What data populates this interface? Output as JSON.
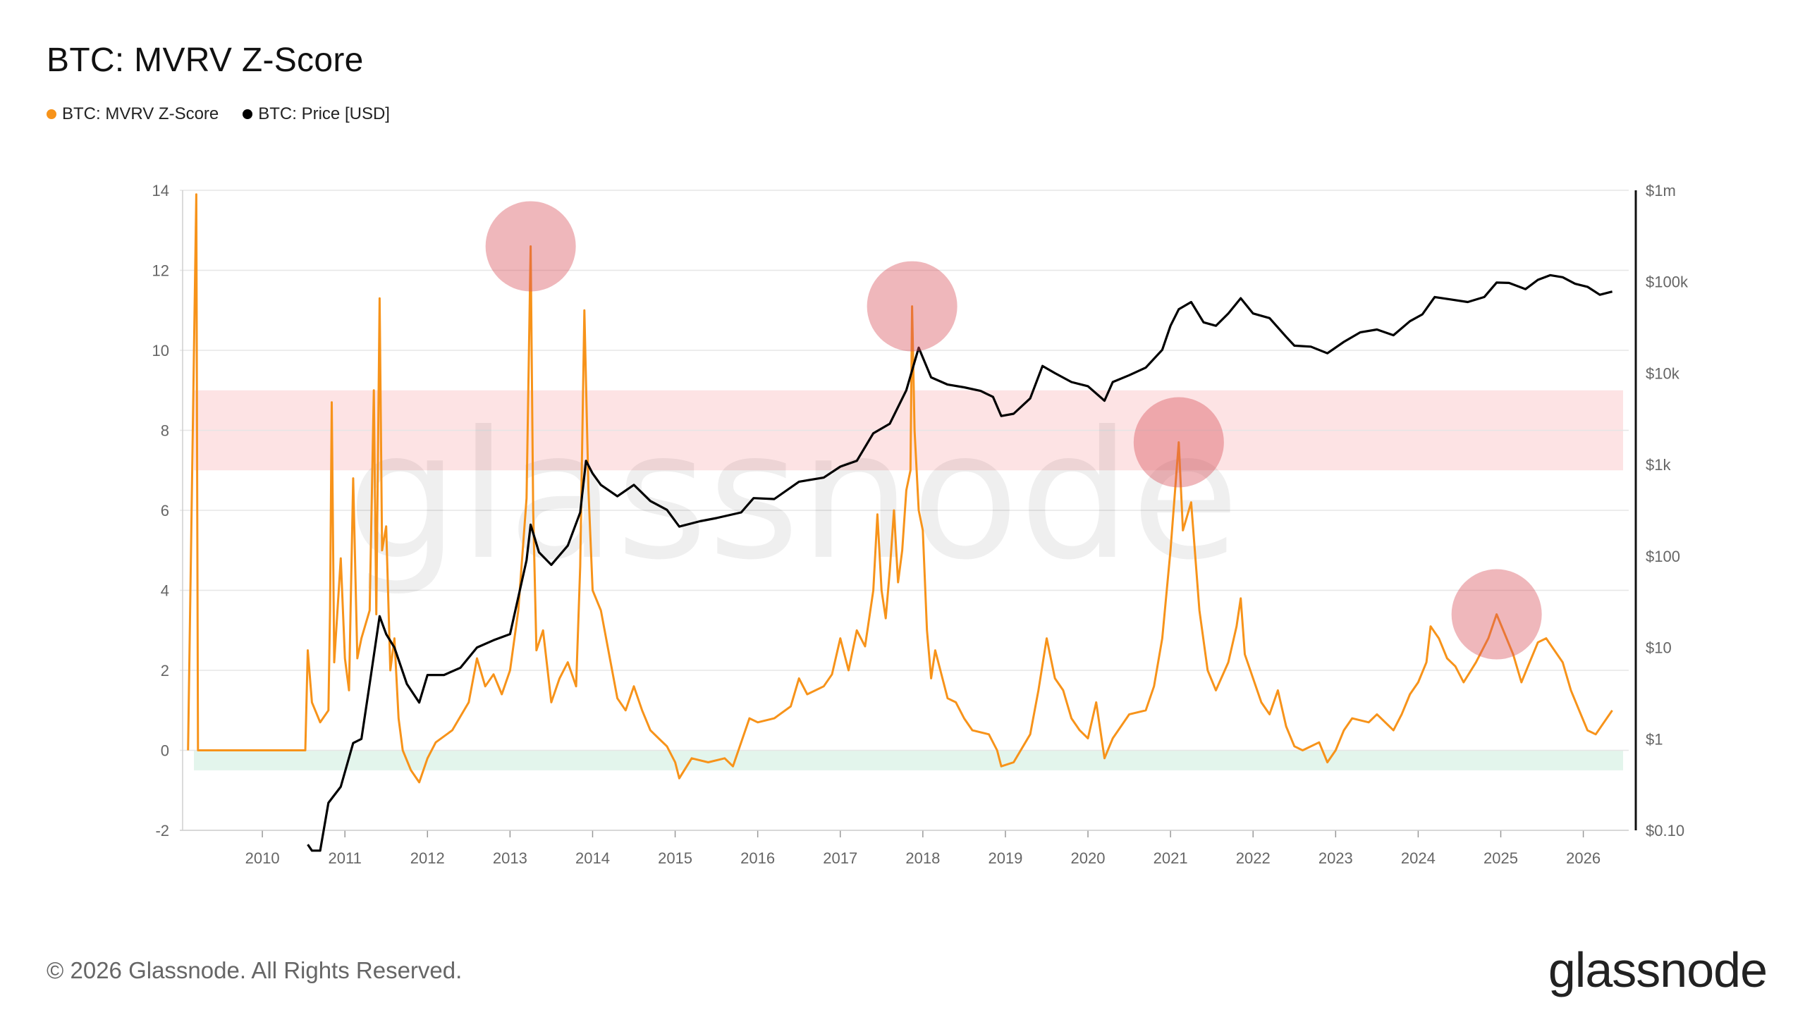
{
  "title": "BTC: MVRV Z-Score",
  "footer": "© 2026 Glassnode. All Rights Reserved.",
  "brand": "glassnode",
  "watermark": "glassnode",
  "legend": [
    {
      "label": "BTC: MVRV Z-Score",
      "color": "#f7931a"
    },
    {
      "label": "BTC: Price [USD]",
      "color": "#000000"
    }
  ],
  "chart_data": {
    "type": "line",
    "grid": true,
    "x_axis": {
      "ticks": [
        "2010",
        "2011",
        "2012",
        "2013",
        "2014",
        "2015",
        "2016",
        "2017",
        "2018",
        "2019",
        "2020",
        "2021",
        "2022",
        "2023",
        "2024",
        "2025",
        "2026"
      ]
    },
    "y_left": {
      "ticks": [
        "-2",
        "0",
        "2",
        "4",
        "6",
        "8",
        "10",
        "12",
        "14"
      ],
      "range": [
        -2,
        14
      ]
    },
    "y_right": {
      "ticks": [
        "$0.10",
        "$1",
        "$10",
        "$100",
        "$1k",
        "$10k",
        "$100k",
        "$1m"
      ],
      "scale": "log",
      "range": [
        0.1,
        1000000
      ]
    },
    "bands": [
      {
        "name": "overvalued-zone",
        "y_from": 7,
        "y_to": 9,
        "color": "#fde3e4"
      },
      {
        "name": "undervalued-zone",
        "y_from": -0.5,
        "y_to": 0,
        "color": "#e3f5ec"
      }
    ],
    "peak_markers": [
      {
        "year": 2013.25,
        "z": 12.6
      },
      {
        "year": 2017.87,
        "z": 11.1
      },
      {
        "year": 2021.1,
        "z": 7.7
      },
      {
        "year": 2024.95,
        "z": 3.4
      }
    ],
    "series": [
      {
        "name": "BTC: MVRV Z-Score",
        "color": "#f7931a",
        "axis": "left",
        "points": [
          [
            2009.1,
            0
          ],
          [
            2009.2,
            13.9
          ],
          [
            2009.22,
            0
          ],
          [
            2010.52,
            0
          ],
          [
            2010.55,
            2.5
          ],
          [
            2010.6,
            1.2
          ],
          [
            2010.7,
            0.7
          ],
          [
            2010.8,
            1.0
          ],
          [
            2010.82,
            3.5
          ],
          [
            2010.84,
            8.7
          ],
          [
            2010.87,
            2.2
          ],
          [
            2010.95,
            4.8
          ],
          [
            2011.0,
            2.3
          ],
          [
            2011.05,
            1.5
          ],
          [
            2011.1,
            6.8
          ],
          [
            2011.15,
            2.3
          ],
          [
            2011.2,
            2.8
          ],
          [
            2011.3,
            3.5
          ],
          [
            2011.35,
            9.0
          ],
          [
            2011.38,
            3.4
          ],
          [
            2011.42,
            11.3
          ],
          [
            2011.45,
            5.0
          ],
          [
            2011.5,
            5.6
          ],
          [
            2011.55,
            2.0
          ],
          [
            2011.6,
            2.8
          ],
          [
            2011.65,
            0.8
          ],
          [
            2011.7,
            0
          ],
          [
            2011.8,
            -0.5
          ],
          [
            2011.9,
            -0.8
          ],
          [
            2012.0,
            -0.2
          ],
          [
            2012.1,
            0.2
          ],
          [
            2012.3,
            0.5
          ],
          [
            2012.5,
            1.2
          ],
          [
            2012.6,
            2.3
          ],
          [
            2012.7,
            1.6
          ],
          [
            2012.8,
            1.9
          ],
          [
            2012.9,
            1.4
          ],
          [
            2013.0,
            2.0
          ],
          [
            2013.1,
            3.5
          ],
          [
            2013.2,
            6.3
          ],
          [
            2013.25,
            12.6
          ],
          [
            2013.28,
            6.0
          ],
          [
            2013.32,
            2.5
          ],
          [
            2013.4,
            3.0
          ],
          [
            2013.5,
            1.2
          ],
          [
            2013.6,
            1.8
          ],
          [
            2013.7,
            2.2
          ],
          [
            2013.8,
            1.6
          ],
          [
            2013.85,
            4.6
          ],
          [
            2013.9,
            11.0
          ],
          [
            2013.95,
            6.5
          ],
          [
            2014.0,
            4.0
          ],
          [
            2014.1,
            3.5
          ],
          [
            2014.2,
            2.4
          ],
          [
            2014.3,
            1.3
          ],
          [
            2014.4,
            1.0
          ],
          [
            2014.5,
            1.6
          ],
          [
            2014.6,
            1.0
          ],
          [
            2014.7,
            0.5
          ],
          [
            2014.8,
            0.3
          ],
          [
            2014.9,
            0.1
          ],
          [
            2015.0,
            -0.3
          ],
          [
            2015.05,
            -0.7
          ],
          [
            2015.2,
            -0.2
          ],
          [
            2015.4,
            -0.3
          ],
          [
            2015.6,
            -0.2
          ],
          [
            2015.7,
            -0.4
          ],
          [
            2015.8,
            0.2
          ],
          [
            2015.9,
            0.8
          ],
          [
            2016.0,
            0.7
          ],
          [
            2016.2,
            0.8
          ],
          [
            2016.4,
            1.1
          ],
          [
            2016.5,
            1.8
          ],
          [
            2016.6,
            1.4
          ],
          [
            2016.8,
            1.6
          ],
          [
            2016.9,
            1.9
          ],
          [
            2017.0,
            2.8
          ],
          [
            2017.1,
            2.0
          ],
          [
            2017.2,
            3.0
          ],
          [
            2017.3,
            2.6
          ],
          [
            2017.4,
            4.0
          ],
          [
            2017.45,
            5.9
          ],
          [
            2017.5,
            4.0
          ],
          [
            2017.55,
            3.3
          ],
          [
            2017.6,
            4.5
          ],
          [
            2017.65,
            6.0
          ],
          [
            2017.7,
            4.2
          ],
          [
            2017.75,
            5.0
          ],
          [
            2017.8,
            6.5
          ],
          [
            2017.85,
            7.0
          ],
          [
            2017.87,
            11.1
          ],
          [
            2017.9,
            8.0
          ],
          [
            2017.95,
            6.0
          ],
          [
            2018.0,
            5.5
          ],
          [
            2018.05,
            3.0
          ],
          [
            2018.1,
            1.8
          ],
          [
            2018.15,
            2.5
          ],
          [
            2018.3,
            1.3
          ],
          [
            2018.4,
            1.2
          ],
          [
            2018.5,
            0.8
          ],
          [
            2018.6,
            0.5
          ],
          [
            2018.8,
            0.4
          ],
          [
            2018.9,
            0
          ],
          [
            2018.95,
            -0.4
          ],
          [
            2019.1,
            -0.3
          ],
          [
            2019.3,
            0.4
          ],
          [
            2019.4,
            1.5
          ],
          [
            2019.5,
            2.8
          ],
          [
            2019.6,
            1.8
          ],
          [
            2019.7,
            1.5
          ],
          [
            2019.8,
            0.8
          ],
          [
            2019.9,
            0.5
          ],
          [
            2020.0,
            0.3
          ],
          [
            2020.1,
            1.2
          ],
          [
            2020.2,
            -0.2
          ],
          [
            2020.3,
            0.3
          ],
          [
            2020.5,
            0.9
          ],
          [
            2020.7,
            1.0
          ],
          [
            2020.8,
            1.6
          ],
          [
            2020.9,
            2.8
          ],
          [
            2021.0,
            5.0
          ],
          [
            2021.1,
            7.7
          ],
          [
            2021.15,
            5.5
          ],
          [
            2021.25,
            6.2
          ],
          [
            2021.35,
            3.5
          ],
          [
            2021.45,
            2.0
          ],
          [
            2021.55,
            1.5
          ],
          [
            2021.7,
            2.2
          ],
          [
            2021.8,
            3.1
          ],
          [
            2021.85,
            3.8
          ],
          [
            2021.9,
            2.4
          ],
          [
            2022.0,
            1.8
          ],
          [
            2022.1,
            1.2
          ],
          [
            2022.2,
            0.9
          ],
          [
            2022.3,
            1.5
          ],
          [
            2022.4,
            0.6
          ],
          [
            2022.5,
            0.1
          ],
          [
            2022.6,
            0
          ],
          [
            2022.8,
            0.2
          ],
          [
            2022.9,
            -0.3
          ],
          [
            2023.0,
            0
          ],
          [
            2023.1,
            0.5
          ],
          [
            2023.2,
            0.8
          ],
          [
            2023.4,
            0.7
          ],
          [
            2023.5,
            0.9
          ],
          [
            2023.7,
            0.5
          ],
          [
            2023.8,
            0.9
          ],
          [
            2023.9,
            1.4
          ],
          [
            2024.0,
            1.7
          ],
          [
            2024.1,
            2.2
          ],
          [
            2024.15,
            3.1
          ],
          [
            2024.25,
            2.8
          ],
          [
            2024.35,
            2.3
          ],
          [
            2024.45,
            2.1
          ],
          [
            2024.55,
            1.7
          ],
          [
            2024.7,
            2.2
          ],
          [
            2024.85,
            2.8
          ],
          [
            2024.95,
            3.4
          ],
          [
            2025.05,
            2.9
          ],
          [
            2025.15,
            2.4
          ],
          [
            2025.25,
            1.7
          ],
          [
            2025.35,
            2.2
          ],
          [
            2025.45,
            2.7
          ],
          [
            2025.55,
            2.8
          ],
          [
            2025.65,
            2.5
          ],
          [
            2025.75,
            2.2
          ],
          [
            2025.85,
            1.5
          ],
          [
            2025.95,
            1.0
          ],
          [
            2026.05,
            0.5
          ],
          [
            2026.15,
            0.4
          ],
          [
            2026.25,
            0.7
          ],
          [
            2026.35,
            1.0
          ]
        ]
      },
      {
        "name": "BTC: Price [USD]",
        "color": "#000000",
        "axis": "right",
        "points": [
          [
            2010.55,
            0.07
          ],
          [
            2010.6,
            0.06
          ],
          [
            2010.7,
            0.06
          ],
          [
            2010.8,
            0.2
          ],
          [
            2010.95,
            0.3
          ],
          [
            2011.1,
            0.9
          ],
          [
            2011.2,
            1.0
          ],
          [
            2011.3,
            4
          ],
          [
            2011.42,
            22
          ],
          [
            2011.5,
            14
          ],
          [
            2011.6,
            10
          ],
          [
            2011.75,
            4
          ],
          [
            2011.9,
            2.5
          ],
          [
            2012.0,
            5
          ],
          [
            2012.2,
            5
          ],
          [
            2012.4,
            6
          ],
          [
            2012.6,
            10
          ],
          [
            2012.8,
            12
          ],
          [
            2013.0,
            14
          ],
          [
            2013.2,
            90
          ],
          [
            2013.25,
            220
          ],
          [
            2013.35,
            110
          ],
          [
            2013.5,
            80
          ],
          [
            2013.7,
            130
          ],
          [
            2013.85,
            300
          ],
          [
            2013.92,
            1100
          ],
          [
            2014.0,
            800
          ],
          [
            2014.1,
            600
          ],
          [
            2014.3,
            450
          ],
          [
            2014.5,
            600
          ],
          [
            2014.7,
            400
          ],
          [
            2014.9,
            320
          ],
          [
            2015.05,
            210
          ],
          [
            2015.3,
            240
          ],
          [
            2015.5,
            260
          ],
          [
            2015.8,
            300
          ],
          [
            2015.95,
            430
          ],
          [
            2016.2,
            420
          ],
          [
            2016.5,
            650
          ],
          [
            2016.8,
            720
          ],
          [
            2017.0,
            950
          ],
          [
            2017.2,
            1100
          ],
          [
            2017.4,
            2200
          ],
          [
            2017.6,
            2800
          ],
          [
            2017.8,
            6500
          ],
          [
            2017.95,
            19000
          ],
          [
            2018.1,
            9000
          ],
          [
            2018.3,
            7500
          ],
          [
            2018.5,
            7000
          ],
          [
            2018.7,
            6400
          ],
          [
            2018.85,
            5500
          ],
          [
            2018.95,
            3400
          ],
          [
            2019.1,
            3600
          ],
          [
            2019.3,
            5300
          ],
          [
            2019.45,
            12000
          ],
          [
            2019.6,
            10000
          ],
          [
            2019.8,
            8000
          ],
          [
            2020.0,
            7200
          ],
          [
            2020.2,
            5000
          ],
          [
            2020.3,
            8000
          ],
          [
            2020.5,
            9500
          ],
          [
            2020.7,
            11500
          ],
          [
            2020.9,
            18000
          ],
          [
            2021.0,
            33000
          ],
          [
            2021.1,
            50000
          ],
          [
            2021.25,
            60000
          ],
          [
            2021.4,
            36000
          ],
          [
            2021.55,
            33000
          ],
          [
            2021.7,
            45000
          ],
          [
            2021.85,
            66000
          ],
          [
            2022.0,
            45000
          ],
          [
            2022.2,
            40000
          ],
          [
            2022.4,
            25000
          ],
          [
            2022.5,
            20000
          ],
          [
            2022.7,
            19500
          ],
          [
            2022.9,
            16500
          ],
          [
            2023.1,
            22000
          ],
          [
            2023.3,
            28000
          ],
          [
            2023.5,
            30000
          ],
          [
            2023.7,
            26000
          ],
          [
            2023.9,
            37000
          ],
          [
            2024.05,
            44000
          ],
          [
            2024.2,
            68000
          ],
          [
            2024.4,
            64000
          ],
          [
            2024.6,
            60000
          ],
          [
            2024.8,
            68000
          ],
          [
            2024.95,
            98000
          ],
          [
            2025.1,
            97000
          ],
          [
            2025.3,
            83000
          ],
          [
            2025.45,
            105000
          ],
          [
            2025.6,
            118000
          ],
          [
            2025.75,
            112000
          ],
          [
            2025.9,
            95000
          ],
          [
            2026.05,
            88000
          ],
          [
            2026.2,
            72000
          ],
          [
            2026.35,
            78000
          ]
        ]
      }
    ]
  }
}
